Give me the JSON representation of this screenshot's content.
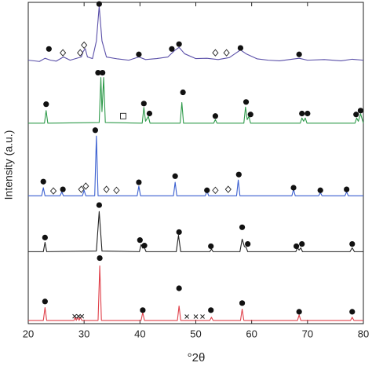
{
  "chart_data": {
    "type": "line",
    "xlabel": "°2θ",
    "ylabel": "Intensity (a.u.)",
    "xlim": [
      20,
      80
    ],
    "xticks": [
      20,
      30,
      40,
      50,
      60,
      70,
      80
    ],
    "ylim": [
      0,
      100
    ],
    "grid": false,
    "series": [
      {
        "color": "#5a4fa8",
        "x": [
          20,
          22,
          23,
          24,
          25,
          26.3,
          27.5,
          29.5,
          29.8,
          30.2,
          30.6,
          31.5,
          32.2,
          32.7,
          33.2,
          34,
          36,
          38,
          39.8,
          41,
          43,
          45,
          46.2,
          47,
          48,
          50,
          52,
          54,
          56,
          57,
          58,
          59,
          61,
          63,
          65,
          68.5,
          70,
          73,
          76,
          78,
          80
        ],
        "values": [
          82,
          81.6,
          82.6,
          82,
          81.7,
          83,
          82,
          83,
          84.6,
          85.6,
          83,
          82.5,
          88,
          98.8,
          88,
          83,
          82.4,
          82,
          83,
          82.2,
          82.5,
          83,
          85,
          86,
          84,
          82.5,
          82.6,
          82.2,
          82.8,
          84,
          85.2,
          84,
          82.4,
          82,
          81.8,
          82.6,
          82,
          82.2,
          81.8,
          82.3,
          82
        ],
        "markers": {
          "x": [
            23.7,
            26.2,
            29.3,
            30,
            32.7,
            39.8,
            45.7,
            47,
            53.5,
            55.5,
            58,
            68.5
          ],
          "y": [
            85.5,
            84.3,
            84.3,
            86.7,
            99.5,
            83.8,
            85.5,
            87,
            84.3,
            84.3,
            85.8,
            83.8
          ],
          "shape": [
            "circle",
            "diamond",
            "diamond",
            "diamond",
            "circle",
            "circle",
            "circle",
            "circle",
            "diamond",
            "diamond",
            "circle",
            "circle"
          ]
        }
      },
      {
        "color": "#2e9a4a",
        "x": [
          20,
          22.9,
          23.2,
          23.5,
          32.7,
          33,
          33.2,
          33.5,
          33.8,
          40.4,
          40.7,
          41,
          41.5,
          41.8,
          47.2,
          47.5,
          47.8,
          53.2,
          53.5,
          53.8,
          58.6,
          58.9,
          59.2,
          59.5,
          59.8,
          68.7,
          69,
          69.3,
          69.6,
          69.9,
          78.5,
          78.8,
          79.1,
          79.5,
          80
        ],
        "values": [
          62.4,
          62.4,
          66.3,
          62.4,
          62.6,
          76.6,
          66,
          76.6,
          62.6,
          62.4,
          67.3,
          63,
          64.5,
          62.4,
          62.4,
          68.8,
          62.4,
          62.4,
          63.5,
          62.4,
          62.4,
          67.4,
          63.5,
          64.5,
          62.4,
          62.4,
          64,
          63,
          64,
          62.4,
          62.4,
          64,
          63,
          65.3,
          62.4
        ],
        "markers": {
          "x": [
            23.2,
            32.5,
            33.3,
            37,
            40.7,
            41.7,
            47.7,
            53.5,
            59,
            59.8,
            69,
            70,
            78.7,
            79.5
          ],
          "y": [
            68.3,
            78.1,
            78.1,
            64.6,
            68.5,
            65.4,
            72,
            64.6,
            69,
            65.1,
            65.4,
            65.4,
            65.1,
            66.3
          ],
          "shape": [
            "circle",
            "circle",
            "circle",
            "square",
            "circle",
            "circle",
            "circle",
            "circle",
            "circle",
            "circle",
            "circle",
            "circle",
            "circle",
            "circle"
          ]
        }
      },
      {
        "color": "#3a5fd0",
        "x": [
          20,
          22.4,
          22.7,
          23,
          25.7,
          26,
          26.3,
          29.7,
          30,
          30.3,
          31.9,
          32.2,
          32.5,
          39.5,
          39.8,
          40.1,
          46,
          46.3,
          46.6,
          51.7,
          52,
          52.3,
          57.3,
          57.6,
          57.9,
          67.2,
          67.5,
          67.8,
          72,
          72.3,
          72.6,
          76.7,
          77,
          77.3,
          80
        ],
        "values": [
          39.8,
          39.8,
          42.3,
          39.8,
          39.8,
          41,
          39.8,
          39.8,
          41.5,
          39.8,
          39.8,
          58.4,
          39.8,
          39.8,
          42.8,
          39.8,
          39.8,
          44,
          39.8,
          39.8,
          41.3,
          39.8,
          39.8,
          44.7,
          39.8,
          39.8,
          41.8,
          39.8,
          39.8,
          40.8,
          39.8,
          39.8,
          41,
          39.8,
          39.8
        ],
        "markers": {
          "x": [
            22.7,
            24.5,
            26.2,
            29.5,
            30.3,
            32,
            34,
            35.8,
            39.8,
            46.3,
            52,
            53.5,
            55.8,
            57.7,
            67.5,
            72.3,
            77
          ],
          "y": [
            44.2,
            41.3,
            41.8,
            41.8,
            42.8,
            60.2,
            41.8,
            41.5,
            44,
            45.9,
            41.5,
            41.5,
            41.8,
            46.4,
            42.3,
            41.5,
            41.8
          ],
          "shape": [
            "circle",
            "diamond",
            "circle",
            "diamond",
            "diamond",
            "circle",
            "diamond",
            "diamond",
            "circle",
            "circle",
            "circle",
            "diamond",
            "diamond",
            "circle",
            "circle",
            "circle",
            "circle"
          ]
        }
      },
      {
        "color": "#222222",
        "x": [
          20,
          22.7,
          23,
          23.3,
          32.2,
          32.7,
          33.2,
          39.9,
          40.2,
          40.5,
          40.8,
          41.1,
          46.5,
          46.9,
          47.3,
          52.5,
          52.8,
          53.1,
          57.9,
          58.3,
          58.7,
          59,
          59.3,
          67.9,
          68.2,
          68.5,
          68.8,
          69.1,
          77.6,
          78,
          78.4,
          80
        ],
        "values": [
          22.4,
          22.4,
          25.3,
          22.4,
          22.6,
          34.9,
          22.6,
          22.4,
          24.6,
          23.5,
          23.6,
          22.4,
          22.4,
          27.5,
          22.4,
          22.4,
          23.2,
          22.4,
          22.4,
          26.3,
          24,
          23.8,
          22.4,
          22.4,
          23.6,
          22.9,
          23.6,
          22.4,
          22.4,
          23.6,
          22.4,
          22.4
        ],
        "markers": {
          "x": [
            23,
            32.7,
            40,
            40.8,
            47,
            52.7,
            58.3,
            59.3,
            68,
            69,
            78
          ],
          "y": [
            26.8,
            36.9,
            26,
            24.3,
            28.5,
            24.1,
            30,
            24.8,
            24.1,
            24.8,
            24.8
          ],
          "shape": [
            "circle",
            "circle",
            "circle",
            "circle",
            "circle",
            "circle",
            "circle",
            "circle",
            "circle",
            "circle",
            "circle"
          ]
        }
      },
      {
        "color": "#e0404a",
        "x": [
          20,
          22.7,
          23,
          23.3,
          28.2,
          28.4,
          28.6,
          28.9,
          29.1,
          29.3,
          29.6,
          29.8,
          32.5,
          32.8,
          33.1,
          40.2,
          40.5,
          40.8,
          46.7,
          47,
          47.3,
          52.5,
          52.8,
          53.1,
          58,
          58.3,
          58.6,
          68.2,
          68.5,
          68.8,
          77.7,
          78,
          78.3,
          80
        ],
        "values": [
          1,
          1,
          5,
          1,
          1,
          2,
          1,
          2,
          1,
          2,
          1,
          1,
          1,
          18,
          1,
          1,
          3.5,
          1,
          1,
          5.5,
          1,
          1,
          2,
          1,
          1,
          4.5,
          1,
          1,
          2.7,
          1,
          1,
          2,
          1,
          1
        ],
        "markers": {
          "x": [
            23,
            28.3,
            29,
            29.6,
            32.8,
            40.5,
            47,
            48.4,
            50,
            51.2,
            52.7,
            58.3,
            68.5,
            78
          ],
          "y": [
            6.9,
            2.3,
            2.3,
            2.3,
            20.4,
            4.2,
            11,
            2.2,
            2.2,
            2.2,
            4.2,
            6.4,
            3.7,
            3.7
          ],
          "shape": [
            "circle",
            "cross",
            "cross",
            "cross",
            "circle",
            "circle",
            "circle",
            "cross",
            "cross",
            "cross",
            "circle",
            "circle",
            "circle",
            "circle"
          ]
        }
      }
    ]
  }
}
